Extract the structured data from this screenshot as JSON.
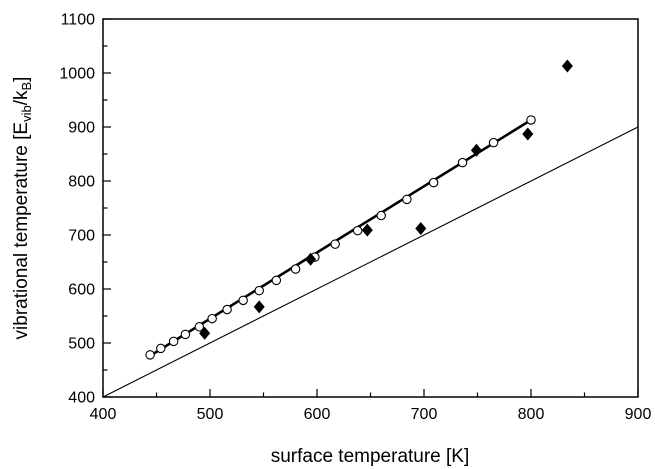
{
  "chart_data": {
    "type": "scatter",
    "xlabel": "surface temperature [K]",
    "ylabel": {
      "main": "vibrational temperature [E",
      "sub1": "vib",
      "mid": "/k",
      "sub2": "B",
      "end": "]"
    },
    "xlim": [
      400,
      900
    ],
    "ylim": [
      400,
      1100
    ],
    "x_ticks": [
      400,
      500,
      600,
      700,
      800,
      900
    ],
    "y_ticks": [
      400,
      500,
      600,
      700,
      800,
      900,
      1000,
      1100
    ],
    "grid": false,
    "legend": "none",
    "series": [
      {
        "marker": "open-circle",
        "color": "#000000",
        "points": [
          [
            444,
            478
          ],
          [
            454,
            490
          ],
          [
            466,
            503
          ],
          [
            477,
            516
          ],
          [
            490,
            530
          ],
          [
            502,
            545
          ],
          [
            516,
            562
          ],
          [
            531,
            579
          ],
          [
            546,
            597
          ],
          [
            562,
            616
          ],
          [
            580,
            637
          ],
          [
            598,
            659
          ],
          [
            617,
            683
          ],
          [
            638,
            708
          ],
          [
            660,
            736
          ],
          [
            684,
            766
          ],
          [
            709,
            797
          ],
          [
            736,
            834
          ],
          [
            765,
            871
          ],
          [
            800,
            913
          ]
        ]
      },
      {
        "marker": "filled-diamond",
        "color": "#000000",
        "points": [
          [
            495,
            518
          ],
          [
            546,
            567
          ],
          [
            594,
            655
          ],
          [
            647,
            709
          ],
          [
            697,
            712
          ],
          [
            749,
            857
          ],
          [
            797,
            887
          ],
          [
            834,
            1013
          ]
        ]
      }
    ],
    "lines": [
      {
        "style": "thick",
        "x": [
          443,
          800
        ],
        "y": [
          475,
          913
        ]
      },
      {
        "style": "thin",
        "x": [
          400,
          900
        ],
        "y": [
          400,
          900
        ]
      }
    ]
  }
}
